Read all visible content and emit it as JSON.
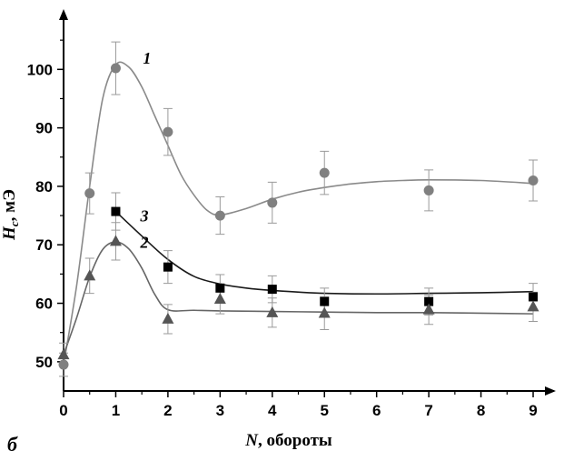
{
  "chart_data": {
    "type": "scatter",
    "panel_label": "б",
    "xlabel_var": "N",
    "xlabel_rest": ", обороты",
    "ylabel_var": "H",
    "ylabel_sub": "c",
    "ylabel_rest": ", мЭ",
    "xlim": [
      0,
      9.4
    ],
    "ylim": [
      45,
      110
    ],
    "x_ticks": [
      "0",
      "1",
      "2",
      "3",
      "4",
      "5",
      "6",
      "7",
      "8",
      "9"
    ],
    "y_ticks": [
      "50",
      "60",
      "70",
      "80",
      "90",
      "100"
    ],
    "grid": false,
    "series": [
      {
        "name": "1",
        "marker": "circle",
        "color": "#808080",
        "line_color": "#8a8a8a",
        "x": [
          0,
          0.5,
          1,
          2,
          3,
          4,
          5,
          7,
          9
        ],
        "y": [
          49.5,
          78.8,
          100.2,
          89.3,
          75.0,
          77.2,
          82.3,
          79.3,
          81.0
        ],
        "err": [
          2,
          3.5,
          4.5,
          4,
          3.2,
          3.5,
          3.7,
          3.5,
          3.5
        ],
        "fit_x": [
          0,
          0.25,
          0.5,
          0.75,
          1,
          1.25,
          1.5,
          1.75,
          2,
          2.25,
          2.5,
          2.75,
          3,
          3.5,
          4,
          4.5,
          5,
          5.5,
          6,
          6.5,
          7,
          8,
          9
        ],
        "fit_y": [
          49.5,
          63,
          80,
          95,
          100.8,
          100.4,
          97,
          92,
          87,
          82,
          78.5,
          75.9,
          75.1,
          76.2,
          77.8,
          79,
          79.8,
          80.4,
          80.8,
          81,
          81.1,
          81,
          80.5
        ]
      },
      {
        "name": "3",
        "marker": "square",
        "color": "#000000",
        "line_color": "#1a1a1a",
        "x": [
          1,
          2,
          3,
          4,
          5,
          7,
          9
        ],
        "y": [
          75.7,
          66.2,
          62.6,
          62.4,
          60.3,
          60.3,
          61.1
        ],
        "err": [
          3.2,
          2.8,
          2.3,
          2.3,
          2.3,
          2.3,
          2.3
        ],
        "fit_x": [
          1,
          1.5,
          2,
          2.5,
          3,
          3.5,
          4,
          5,
          6,
          7,
          8,
          9
        ],
        "fit_y": [
          75.7,
          71.5,
          67.5,
          64.6,
          63.3,
          62.6,
          62.2,
          61.7,
          61.6,
          61.7,
          61.8,
          62.0
        ]
      },
      {
        "name": "2",
        "marker": "triangle",
        "color": "#555555",
        "line_color": "#666666",
        "x": [
          0,
          0.5,
          1,
          2,
          3,
          4,
          5,
          7,
          9
        ],
        "y": [
          51.2,
          64.7,
          70.6,
          57.3,
          60.7,
          58.4,
          58.3,
          58.9,
          59.4
        ],
        "err": [
          2,
          3,
          3.2,
          2.5,
          2.5,
          2.5,
          2.8,
          2.5,
          2.5
        ],
        "fit_x": [
          0,
          0.25,
          0.5,
          0.75,
          1,
          1.25,
          1.5,
          1.75,
          2,
          2.5,
          3,
          4,
          5,
          6,
          7,
          8,
          9
        ],
        "fit_y": [
          51.2,
          57.5,
          64.5,
          69.2,
          70.5,
          69.3,
          66,
          61.5,
          58.9,
          58.8,
          58.7,
          58.6,
          58.5,
          58.4,
          58.4,
          58.3,
          58.2
        ]
      }
    ],
    "curve_labels": [
      {
        "text": "1",
        "x": 1.52,
        "y": 101
      },
      {
        "text": "3",
        "x": 1.47,
        "y": 74
      },
      {
        "text": "2",
        "x": 1.47,
        "y": 69.5
      }
    ]
  }
}
